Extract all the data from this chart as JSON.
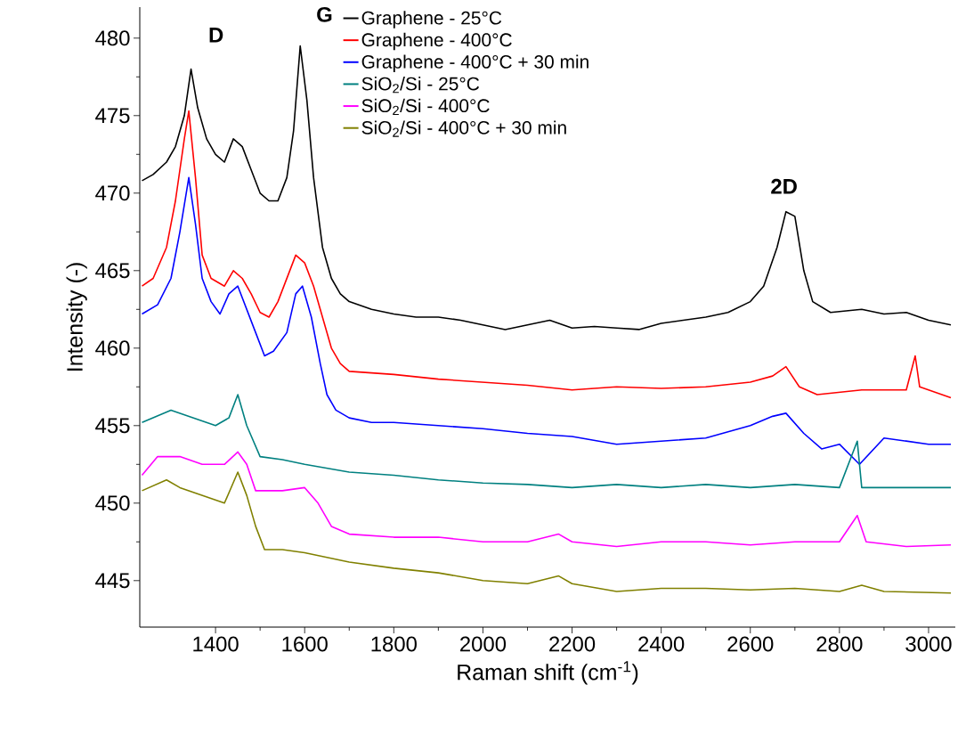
{
  "chart_data": {
    "type": "line",
    "xlabel": "Raman shift (cm$^{-1}$)",
    "ylabel": "Intensity (-)",
    "xlim": [
      1230,
      3060
    ],
    "ylim": [
      442,
      482
    ],
    "xticks": [
      1400,
      1600,
      1800,
      2000,
      2200,
      2400,
      2600,
      2800,
      3000
    ],
    "yticks": [
      445,
      450,
      455,
      460,
      465,
      470,
      475,
      480
    ],
    "legend": "top",
    "line_style": "solid",
    "annotations": [
      "D",
      "G",
      "2D"
    ],
    "series": [
      {
        "name": "Graphene - 25°C",
        "color": "#000000",
        "x": [
          1235,
          1260,
          1290,
          1310,
          1330,
          1345,
          1360,
          1380,
          1400,
          1420,
          1440,
          1460,
          1480,
          1500,
          1520,
          1540,
          1560,
          1575,
          1590,
          1605,
          1620,
          1640,
          1660,
          1680,
          1700,
          1750,
          1800,
          1850,
          1900,
          1950,
          2000,
          2050,
          2100,
          2150,
          2200,
          2250,
          2300,
          2350,
          2400,
          2450,
          2500,
          2550,
          2600,
          2630,
          2660,
          2680,
          2700,
          2720,
          2740,
          2780,
          2850,
          2900,
          2950,
          3000,
          3050
        ],
        "values": [
          470.8,
          471.2,
          472,
          473,
          475,
          478,
          475.5,
          473.5,
          472.5,
          472,
          473.5,
          473,
          471.5,
          470,
          469.5,
          469.5,
          471,
          474,
          479.5,
          476,
          471,
          466.5,
          464.5,
          463.5,
          463,
          462.5,
          462.2,
          462,
          462,
          461.8,
          461.5,
          461.2,
          461.5,
          461.8,
          461.3,
          461.4,
          461.3,
          461.2,
          461.6,
          461.8,
          462,
          462.3,
          463,
          464,
          466.5,
          468.8,
          468.5,
          465,
          463,
          462.3,
          462.5,
          462.2,
          462.3,
          461.8,
          461.5
        ]
      },
      {
        "name": "Graphene - 400°C",
        "color": "#ff0000",
        "x": [
          1235,
          1260,
          1290,
          1310,
          1330,
          1340,
          1355,
          1370,
          1390,
          1420,
          1440,
          1460,
          1480,
          1500,
          1520,
          1540,
          1560,
          1580,
          1600,
          1620,
          1640,
          1660,
          1680,
          1700,
          1800,
          1900,
          2000,
          2100,
          2200,
          2300,
          2400,
          2500,
          2600,
          2650,
          2680,
          2710,
          2750,
          2850,
          2950,
          2970,
          2980,
          3050
        ],
        "values": [
          464,
          464.5,
          466.5,
          469.5,
          473.5,
          475.3,
          471,
          466,
          464.5,
          464,
          465,
          464.5,
          463.5,
          462.3,
          462,
          463,
          464.5,
          466,
          465.5,
          464,
          462,
          460,
          459,
          458.5,
          458.3,
          458,
          457.8,
          457.6,
          457.3,
          457.5,
          457.4,
          457.5,
          457.8,
          458.2,
          458.8,
          457.5,
          457,
          457.3,
          457.3,
          459.5,
          457.5,
          456.8
        ]
      },
      {
        "name": "Graphene - 400°C + 30 min",
        "color": "#0000ff",
        "x": [
          1235,
          1270,
          1300,
          1320,
          1340,
          1355,
          1370,
          1390,
          1410,
          1430,
          1450,
          1470,
          1490,
          1510,
          1530,
          1560,
          1580,
          1595,
          1615,
          1635,
          1650,
          1670,
          1700,
          1750,
          1800,
          1900,
          2000,
          2100,
          2200,
          2300,
          2400,
          2500,
          2600,
          2650,
          2680,
          2720,
          2760,
          2800,
          2845,
          2900,
          3000,
          3050
        ],
        "values": [
          462.2,
          462.8,
          464.5,
          467.5,
          471,
          468,
          464.5,
          463,
          462.2,
          463.5,
          464,
          462.5,
          461,
          459.5,
          459.8,
          461,
          463.5,
          464,
          462,
          459,
          457,
          456,
          455.5,
          455.2,
          455.2,
          455,
          454.8,
          454.5,
          454.3,
          453.8,
          454,
          454.2,
          455,
          455.6,
          455.8,
          454.5,
          453.5,
          453.8,
          452.5,
          454.2,
          453.8,
          453.8
        ]
      },
      {
        "name": "SiO$_{2}$/Si - 25°C",
        "color": "#008080",
        "x": [
          1235,
          1300,
          1350,
          1400,
          1430,
          1450,
          1470,
          1500,
          1550,
          1600,
          1700,
          1800,
          1900,
          2000,
          2100,
          2200,
          2300,
          2400,
          2500,
          2600,
          2700,
          2800,
          2840,
          2850,
          2950,
          3050
        ],
        "values": [
          455.2,
          456,
          455.5,
          455,
          455.5,
          457,
          455,
          453,
          452.8,
          452.5,
          452,
          451.8,
          451.5,
          451.3,
          451.2,
          451,
          451.2,
          451,
          451.2,
          451,
          451.2,
          451,
          454,
          451,
          451,
          451
        ]
      },
      {
        "name": "SiO$_{2}$/Si - 400°C",
        "color": "#ff00ff",
        "x": [
          1235,
          1270,
          1320,
          1370,
          1420,
          1450,
          1470,
          1490,
          1550,
          1600,
          1630,
          1660,
          1700,
          1800,
          1900,
          2000,
          2100,
          2170,
          2200,
          2300,
          2400,
          2500,
          2600,
          2700,
          2800,
          2840,
          2860,
          2950,
          3050
        ],
        "values": [
          451.8,
          453,
          453,
          452.5,
          452.5,
          453.3,
          452.5,
          450.8,
          450.8,
          451,
          450,
          448.5,
          448,
          447.8,
          447.8,
          447.5,
          447.5,
          448,
          447.5,
          447.2,
          447.5,
          447.5,
          447.3,
          447.5,
          447.5,
          449.2,
          447.5,
          447.2,
          447.3
        ]
      },
      {
        "name": "SiO$_{2}$/Si - 400°C + 30 min",
        "color": "#808000",
        "x": [
          1235,
          1290,
          1320,
          1370,
          1420,
          1450,
          1470,
          1490,
          1510,
          1550,
          1600,
          1700,
          1800,
          1900,
          2000,
          2100,
          2170,
          2200,
          2300,
          2400,
          2500,
          2600,
          2700,
          2800,
          2850,
          2900,
          3050
        ],
        "values": [
          450.8,
          451.5,
          451,
          450.5,
          450,
          452,
          450.5,
          448.5,
          447,
          447,
          446.8,
          446.2,
          445.8,
          445.5,
          445,
          444.8,
          445.3,
          444.8,
          444.3,
          444.5,
          444.5,
          444.4,
          444.5,
          444.3,
          444.7,
          444.3,
          444.2
        ]
      }
    ]
  }
}
